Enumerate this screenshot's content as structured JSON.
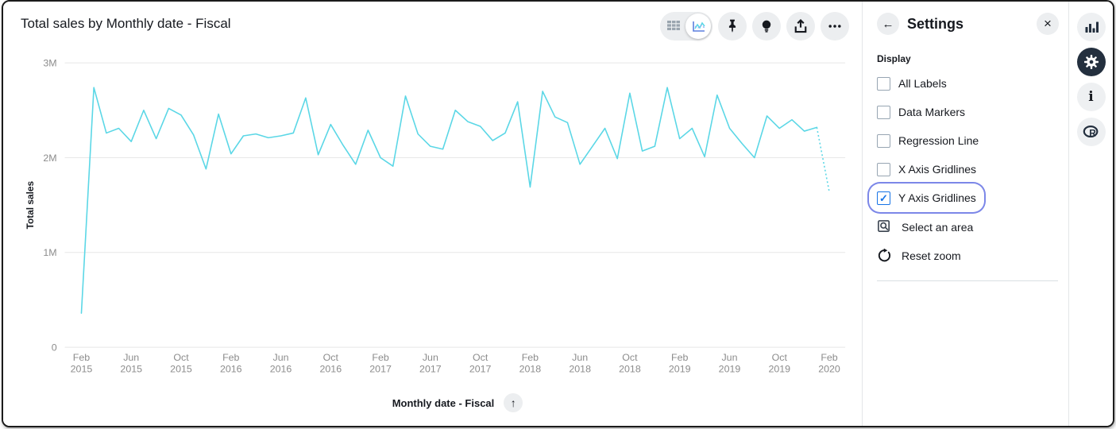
{
  "chart_header": {
    "title": "Total sales by Monthly date - Fiscal"
  },
  "toolbar": {
    "icons": [
      "table-view-icon",
      "line-chart-view-icon",
      "pin-icon",
      "lightbulb-icon",
      "export-icon",
      "ellipsis-icon"
    ],
    "selected_view": "line-chart"
  },
  "settings_panel": {
    "title": "Settings",
    "back_icon": "arrow-left-icon",
    "close_icon": "close-icon",
    "section_label": "Display",
    "checkboxes": [
      {
        "label": "All Labels",
        "checked": false,
        "focused": false
      },
      {
        "label": "Data Markers",
        "checked": false,
        "focused": false
      },
      {
        "label": "Regression Line",
        "checked": false,
        "focused": false
      },
      {
        "label": "X Axis Gridlines",
        "checked": false,
        "focused": false
      },
      {
        "label": "Y Axis Gridlines",
        "checked": true,
        "focused": true
      }
    ],
    "actions": [
      {
        "label": "Select an area",
        "icon": "select-area-icon"
      },
      {
        "label": "Reset zoom",
        "icon": "reset-zoom-icon"
      }
    ]
  },
  "right_rail": {
    "icons": [
      "bar-chart-icon",
      "gear-icon",
      "info-icon",
      "r-logo-icon"
    ],
    "selected": "gear-icon"
  },
  "chart_data": {
    "type": "line",
    "title": "Total sales by Monthly date - Fiscal",
    "xlabel": "Monthly date - Fiscal",
    "ylabel": "Total sales",
    "ylim": [
      0,
      3000000
    ],
    "grid": "y-gridlines-on",
    "legend": "none",
    "line_color": "#5BD7E6",
    "last_segment_style": "dotted",
    "yticks": [
      {
        "v": 0,
        "label": "0"
      },
      {
        "v": 1000000,
        "label": "1M"
      },
      {
        "v": 2000000,
        "label": "2M"
      },
      {
        "v": 3000000,
        "label": "3M"
      }
    ],
    "x": [
      "2015-02",
      "2015-03",
      "2015-04",
      "2015-05",
      "2015-06",
      "2015-07",
      "2015-08",
      "2015-09",
      "2015-10",
      "2015-11",
      "2015-12",
      "2016-01",
      "2016-02",
      "2016-03",
      "2016-04",
      "2016-05",
      "2016-06",
      "2016-07",
      "2016-08",
      "2016-09",
      "2016-10",
      "2016-11",
      "2016-12",
      "2017-01",
      "2017-02",
      "2017-03",
      "2017-04",
      "2017-05",
      "2017-06",
      "2017-07",
      "2017-08",
      "2017-09",
      "2017-10",
      "2017-11",
      "2017-12",
      "2018-01",
      "2018-02",
      "2018-03",
      "2018-04",
      "2018-05",
      "2018-06",
      "2018-07",
      "2018-08",
      "2018-09",
      "2018-10",
      "2018-11",
      "2018-12",
      "2019-01",
      "2019-02",
      "2019-03",
      "2019-04",
      "2019-05",
      "2019-06",
      "2019-07",
      "2019-08",
      "2019-09",
      "2019-10",
      "2019-11",
      "2019-12",
      "2020-01",
      "2020-02"
    ],
    "values": [
      360000,
      2740000,
      2260000,
      2310000,
      2170000,
      2500000,
      2200000,
      2520000,
      2450000,
      2240000,
      1880000,
      2460000,
      2040000,
      2230000,
      2250000,
      2210000,
      2230000,
      2260000,
      2630000,
      2030000,
      2350000,
      2130000,
      1930000,
      2290000,
      2000000,
      1910000,
      2650000,
      2250000,
      2120000,
      2090000,
      2500000,
      2380000,
      2330000,
      2180000,
      2260000,
      2590000,
      1690000,
      2700000,
      2430000,
      2370000,
      1930000,
      2120000,
      2310000,
      1990000,
      2680000,
      2070000,
      2120000,
      2740000,
      2200000,
      2310000,
      2010000,
      2660000,
      2310000,
      2150000,
      2000000,
      2440000,
      2310000,
      2400000,
      2280000,
      2320000,
      1640000
    ],
    "x_tick_labels": [
      [
        "Feb",
        "2015"
      ],
      [
        "Jun",
        "2015"
      ],
      [
        "Oct",
        "2015"
      ],
      [
        "Feb",
        "2016"
      ],
      [
        "Jun",
        "2016"
      ],
      [
        "Oct",
        "2016"
      ],
      [
        "Feb",
        "2017"
      ],
      [
        "Jun",
        "2017"
      ],
      [
        "Oct",
        "2017"
      ],
      [
        "Feb",
        "2018"
      ],
      [
        "Jun",
        "2018"
      ],
      [
        "Oct",
        "2018"
      ],
      [
        "Feb",
        "2019"
      ],
      [
        "Jun",
        "2019"
      ],
      [
        "Oct",
        "2019"
      ],
      [
        "Feb",
        "2020"
      ]
    ],
    "x_tick_every_n_months": 4
  },
  "colors": {
    "line": "#5BD7E6",
    "gridline": "#e7e7e7",
    "tick_text": "#8c8c8c",
    "dark_text": "#16191f",
    "checkbox_checked": "#1673E6",
    "focus_ring": "#7C87E8",
    "icon_bg": "#eceef0",
    "selected_rail_bg": "#232f3e"
  }
}
